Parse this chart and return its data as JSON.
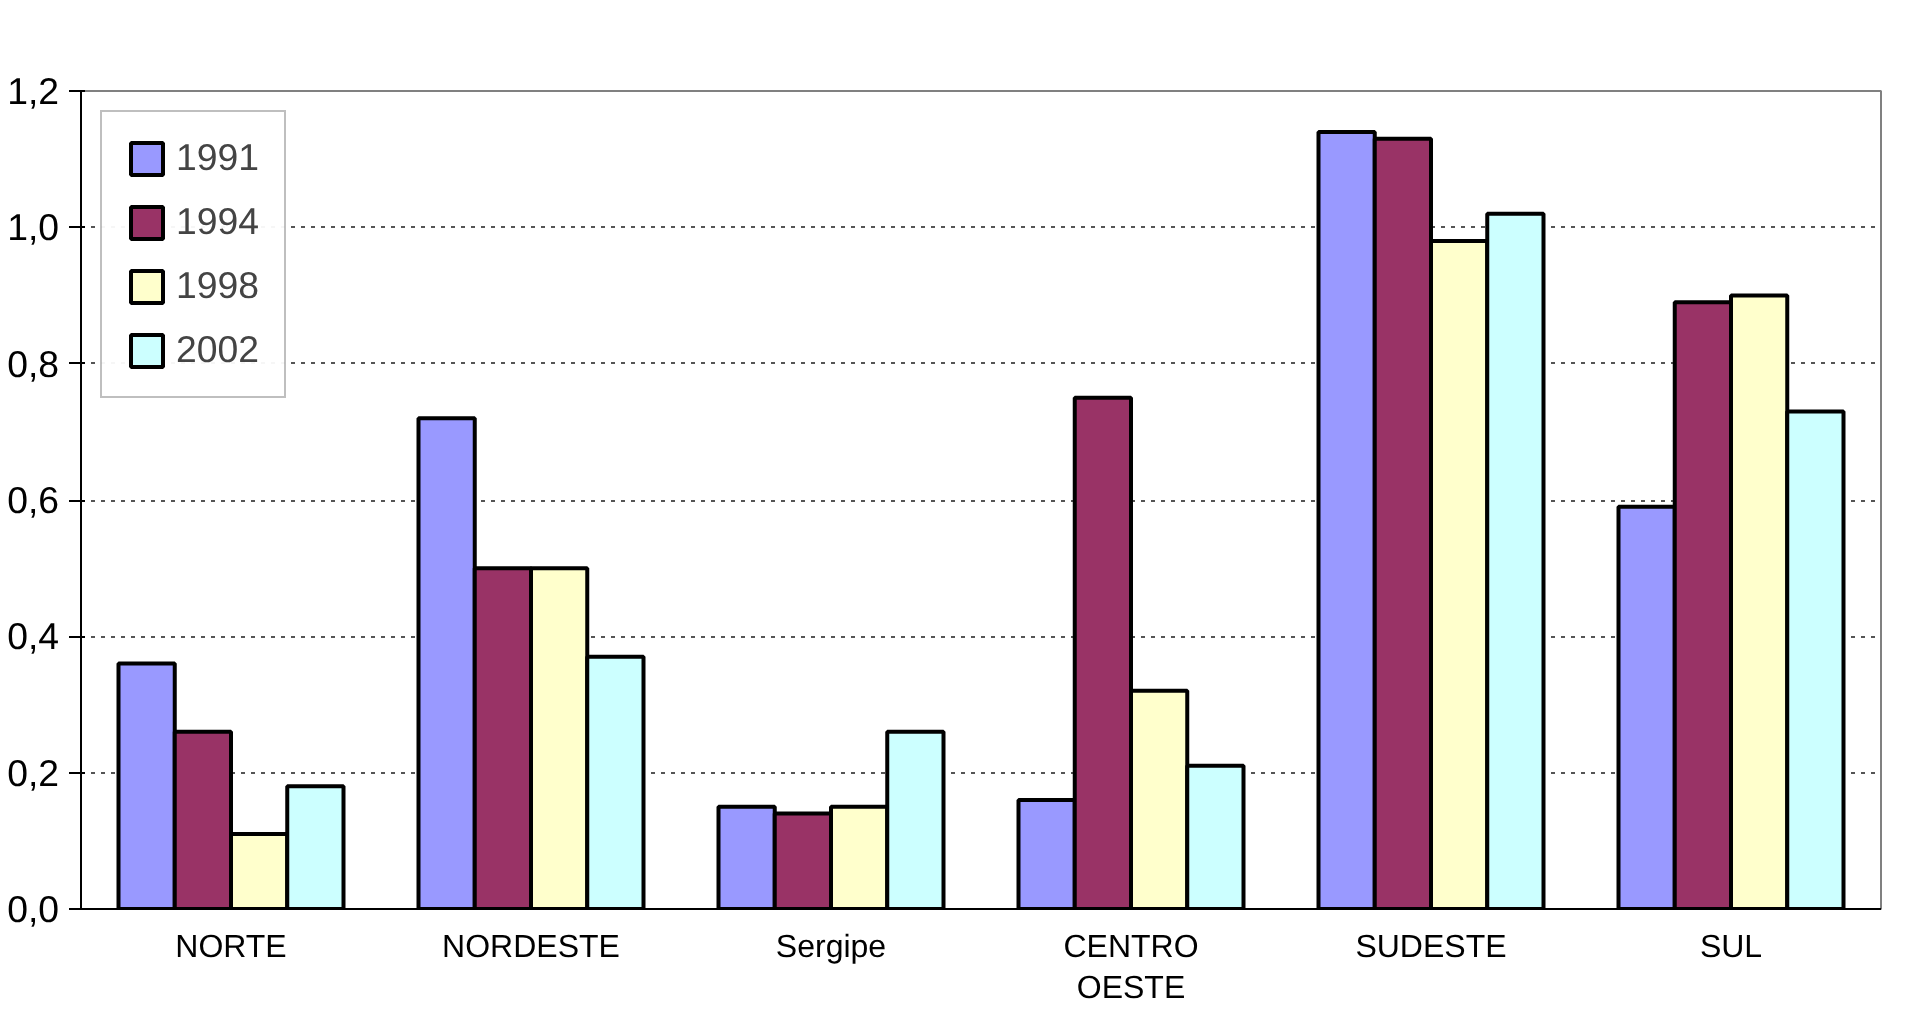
{
  "chart_data": {
    "type": "bar",
    "categories": [
      "NORTE",
      "NORDESTE",
      "Sergipe",
      "CENTRO OESTE",
      "SUDESTE",
      "SUL"
    ],
    "series": [
      {
        "name": "1991",
        "color": "#9999ff",
        "values": [
          0.36,
          0.72,
          0.15,
          0.16,
          1.14,
          0.59
        ]
      },
      {
        "name": "1994",
        "color": "#993366",
        "values": [
          0.26,
          0.5,
          0.14,
          0.75,
          1.13,
          0.89
        ]
      },
      {
        "name": "1998",
        "color": "#ffffcc",
        "values": [
          0.11,
          0.5,
          0.15,
          0.32,
          0.98,
          0.9
        ]
      },
      {
        "name": "2002",
        "color": "#ccffff",
        "values": [
          0.18,
          0.37,
          0.26,
          0.21,
          1.02,
          0.73
        ]
      }
    ],
    "ylim": [
      0,
      1.2
    ],
    "yticks": [
      {
        "value": 0,
        "label": "0,0"
      },
      {
        "value": 0.2,
        "label": "0,2"
      },
      {
        "value": 0.4,
        "label": "0,4"
      },
      {
        "value": 0.6,
        "label": "0,6"
      },
      {
        "value": 0.8,
        "label": "0,8"
      },
      {
        "value": 1.0,
        "label": "1,0"
      },
      {
        "value": 1.2,
        "label": "1,2"
      }
    ],
    "grid": "y",
    "legend": "top left"
  }
}
